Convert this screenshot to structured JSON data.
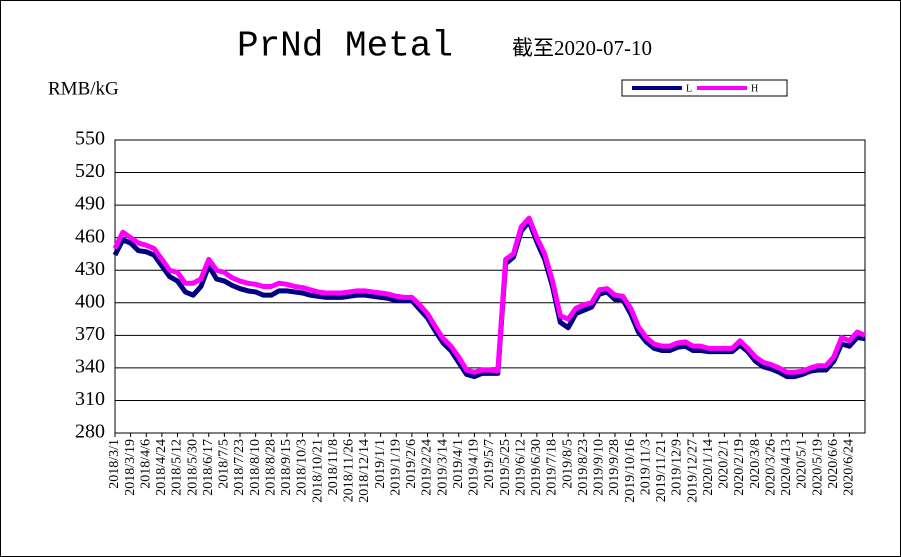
{
  "chart_data": {
    "type": "line",
    "title": "PrNd Metal",
    "subtitle": "截至2020-07-10",
    "y_label": "RMB/kG",
    "categories": [
      "2018/3/1",
      null,
      "2018/3/19",
      null,
      "2018/4/6",
      null,
      "2018/4/24",
      null,
      "2018/5/12",
      null,
      "2018/5/30",
      null,
      "2018/6/17",
      null,
      "2018/7/5",
      null,
      "2018/7/23",
      null,
      "2018/8/10",
      null,
      "2018/8/28",
      null,
      "2018/9/15",
      null,
      "2018/10/3",
      null,
      "2018/10/21",
      null,
      "2018/11/8",
      null,
      "2018/11/26",
      null,
      "2018/12/14",
      null,
      "2019/1/1",
      null,
      "2019/1/19",
      null,
      "2019/2/6",
      null,
      "2019/2/24",
      null,
      "2019/3/14",
      null,
      "2019/4/1",
      null,
      "2019/4/19",
      null,
      "2019/5/7",
      null,
      "2019/5/25",
      null,
      "2019/6/12",
      null,
      "2019/6/30",
      null,
      "2019/7/18",
      null,
      "2019/8/5",
      null,
      "2019/8/23",
      null,
      "2019/9/10",
      null,
      "2019/9/28",
      null,
      "2019/10/16",
      null,
      "2019/11/3",
      null,
      "2019/11/21",
      null,
      "2019/12/9",
      null,
      "2019/12/27",
      null,
      "2020/1/14",
      null,
      "2020/2/1",
      null,
      "2020/2/19",
      null,
      "2020/3/8",
      null,
      "2020/3/26",
      null,
      "2020/4/13",
      null,
      "2020/5/1",
      null,
      "2020/5/19",
      null,
      "2020/6/6",
      null,
      "2020/6/24",
      null,
      null
    ],
    "series": [
      {
        "name": "L",
        "color": "#000080",
        "values": [
          444,
          458,
          455,
          448,
          447,
          444,
          434,
          424,
          420,
          410,
          407,
          415,
          434,
          422,
          420,
          416,
          413,
          411,
          410,
          407,
          407,
          411,
          411,
          410,
          409,
          407,
          406,
          405,
          405,
          405,
          406,
          407,
          407,
          406,
          405,
          404,
          402,
          402,
          402,
          394,
          386,
          374,
          363,
          356,
          345,
          334,
          332,
          335,
          335,
          335,
          436,
          442,
          466,
          475,
          456,
          440,
          415,
          382,
          377,
          390,
          393,
          396,
          408,
          410,
          403,
          403,
          390,
          373,
          364,
          358,
          356,
          356,
          359,
          360,
          356,
          356,
          355,
          355,
          355,
          355,
          361,
          355,
          346,
          341,
          339,
          336,
          332,
          332,
          334,
          337,
          338,
          338,
          346,
          362,
          360,
          368,
          367
        ]
      },
      {
        "name": "H",
        "color": "#ff00ff",
        "values": [
          450,
          465,
          460,
          455,
          453,
          450,
          440,
          430,
          428,
          418,
          418,
          422,
          440,
          430,
          428,
          423,
          420,
          418,
          417,
          415,
          415,
          418,
          417,
          415,
          414,
          412,
          410,
          409,
          409,
          409,
          410,
          411,
          411,
          410,
          409,
          408,
          406,
          405,
          405,
          398,
          390,
          378,
          367,
          360,
          350,
          338,
          336,
          338,
          338,
          337,
          440,
          445,
          470,
          478,
          460,
          445,
          420,
          388,
          385,
          395,
          398,
          400,
          412,
          413,
          407,
          406,
          395,
          378,
          368,
          362,
          360,
          360,
          363,
          364,
          360,
          360,
          358,
          358,
          358,
          358,
          365,
          358,
          350,
          345,
          343,
          340,
          336,
          336,
          337,
          340,
          342,
          342,
          350,
          368,
          365,
          373,
          370
        ]
      }
    ],
    "ylim": [
      280,
      550
    ],
    "yticks": [
      280,
      310,
      340,
      370,
      400,
      430,
      460,
      490,
      520,
      550
    ],
    "grid": true
  }
}
